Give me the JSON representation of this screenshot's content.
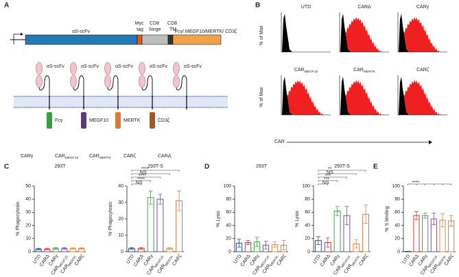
{
  "figure": {
    "panel_a": {
      "label": "A",
      "construct": {
        "scfv": "αS-scFv",
        "myc": "Myc tag",
        "hinge": "CD8 hinge",
        "tm": "CD8 TM",
        "signal": "Fcγ/ MEGF10/MERTK/ CD3ζ"
      },
      "receptors": [
        {
          "scfv": "αS-scFv",
          "domain": "Fcγ",
          "name": "CARγ"
        },
        {
          "scfv": "αS-scFv",
          "domain": "MEGF10",
          "name": "CARMEGF10"
        },
        {
          "scfv": "αS-scFv",
          "domain": "MERTK",
          "name": "CARMERTK"
        },
        {
          "scfv": "αS-scFv",
          "domain": "CD3ζ",
          "name": "CARζ"
        },
        {
          "scfv": "αS-scFv",
          "name": "CARΔ"
        }
      ]
    },
    "panel_b": {
      "label": "B",
      "y_label": "% of Max",
      "x_label": "CAR",
      "titles": [
        "UTD",
        "CARΔ",
        "CARγ",
        "CARMEGF10",
        "CARMERTK",
        "CARζ"
      ]
    }
  },
  "chart_data": [
    {
      "type": "bar",
      "panel": "C",
      "title": "293T",
      "y_label": "% Phagocytosis",
      "categories": [
        "UTD",
        "CARΔ",
        "CARγ",
        "CARMEGF10",
        "CARMERTK",
        "CARζ"
      ],
      "values": [
        2,
        2,
        2.5,
        2.5,
        2.5,
        2.5
      ],
      "errors": [
        0.5,
        0.5,
        0.6,
        0.6,
        0.5,
        0.5
      ],
      "colors": [
        "#1f4e9c",
        "#e03030",
        "#3aa843",
        "#7b4ea0",
        "#e8883a",
        "#d9793a"
      ],
      "ylim": [
        0,
        50
      ],
      "yticks": [
        0,
        10,
        20,
        30,
        40,
        50
      ],
      "annotations": []
    },
    {
      "type": "bar",
      "title": "293T-S",
      "y_label": "% Phagocytosis",
      "categories": [
        "UTD",
        "CARΔ",
        "CARγ",
        "CARMEGF10",
        "CARMERTK",
        "CARζ"
      ],
      "values": [
        2,
        2,
        33,
        32,
        2,
        31
      ],
      "errors": [
        0.5,
        0.5,
        4,
        3,
        0.5,
        6
      ],
      "colors": [
        "#1f4e9c",
        "#e03030",
        "#3aa843",
        "#7b4ea0",
        "#e8883a",
        "#d9793a"
      ],
      "ylim": [
        0,
        40
      ],
      "yticks": [
        0,
        10,
        20,
        30,
        40
      ],
      "annotations": [
        "NS",
        "****",
        "****",
        "NS",
        "****"
      ]
    },
    {
      "type": "bar",
      "panel": "D",
      "title": "293T",
      "y_label": "% Lysis",
      "categories": [
        "UTD",
        "CARΔ",
        "CARγ",
        "CARMEGF10",
        "CARMERTK",
        "CARζ"
      ],
      "values": [
        13,
        14,
        15,
        10,
        11,
        10
      ],
      "errors": [
        6,
        3,
        7,
        6,
        4,
        7
      ],
      "colors": [
        "#1f4e9c",
        "#e03030",
        "#3aa843",
        "#7b4ea0",
        "#e8883a",
        "#d9793a"
      ],
      "ylim": [
        0,
        100
      ],
      "yticks": [
        0,
        20,
        40,
        60,
        80,
        100
      ],
      "annotations": []
    },
    {
      "type": "bar",
      "title": "293T-S",
      "y_label": "% Lysis",
      "categories": [
        "UTD",
        "CARΔ",
        "CARγ",
        "CARMEGF10",
        "CARMERTK",
        "CARζ"
      ],
      "values": [
        17,
        14,
        62,
        55,
        12,
        57
      ],
      "errors": [
        6,
        7,
        7,
        14,
        6,
        14
      ],
      "colors": [
        "#1f4e9c",
        "#e03030",
        "#3aa843",
        "#7b4ea0",
        "#e8883a",
        "#d9793a"
      ],
      "ylim": [
        0,
        100
      ],
      "yticks": [
        0,
        20,
        40,
        60,
        80,
        100
      ],
      "annotations": [
        "NS",
        "***",
        "***",
        "NS",
        "**"
      ]
    },
    {
      "type": "bar",
      "panel": "E",
      "y_label": "% S binding",
      "categories": [
        "UTD",
        "CARΔ",
        "CARγ",
        "CARMEGF10",
        "CARMERTK",
        "CARζ"
      ],
      "values": [
        0.5,
        55,
        55,
        50,
        48,
        47
      ],
      "errors": [
        0.3,
        6,
        4,
        9,
        10,
        8
      ],
      "colors": [
        "#1f4e9c",
        "#e03030",
        "#3aa843",
        "#7b4ea0",
        "#e8883a",
        "#d9793a"
      ],
      "ylim": [
        0,
        100
      ],
      "yticks": [
        0,
        20,
        40,
        60,
        80,
        100
      ],
      "annotations": [
        "****"
      ]
    }
  ]
}
